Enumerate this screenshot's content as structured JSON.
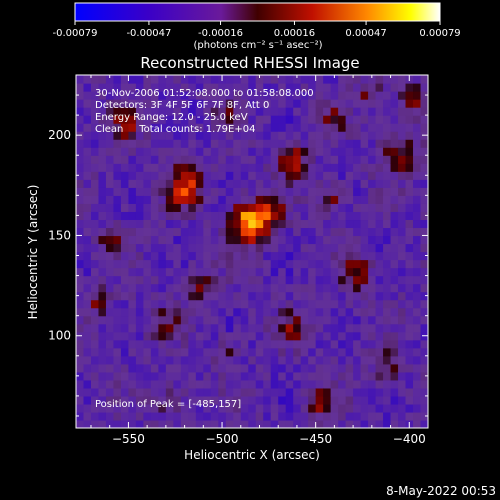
{
  "chart_data": {
    "type": "heatmap",
    "title": "Reconstructed RHESSI Image",
    "xlabel": "Heliocentric X (arcsec)",
    "ylabel": "Heliocentric Y (arcsec)",
    "xlim": [
      -578,
      -390
    ],
    "ylim": [
      54,
      230
    ],
    "x_ticks": [
      -550,
      -500,
      -450,
      -400
    ],
    "y_ticks": [
      100,
      150,
      200
    ],
    "colorbar": {
      "ticks": [
        "-0.00079",
        "-0.00047",
        "-0.00016",
        "0.00016",
        "0.00047",
        "0.00079"
      ],
      "unit_label": "(photons cm⁻² s⁻¹ asec⁻²)",
      "range": [
        -0.00079,
        0.00079
      ]
    },
    "annotations": [
      "30-Nov-2006 01:52:08.000 to 01:58:08.000",
      "Detectors: 3F 4F 5F 6F 7F 8F, Att 0",
      "Energy Range: 12.0 - 25.0 keV",
      "Clean     Total counts: 1.79E+04"
    ],
    "peak_label": "Position of Peak = [-485,157]",
    "peak": {
      "x": -485,
      "y": 157,
      "value": 0.00079
    },
    "hotspots": [
      {
        "x": -485,
        "y": 157,
        "amp": 0.00085,
        "sigma": 7
      },
      {
        "x": -472,
        "y": 162,
        "amp": 0.00035,
        "sigma": 5
      },
      {
        "x": -520,
        "y": 174,
        "amp": 0.00052,
        "sigma": 7
      },
      {
        "x": -552,
        "y": 206,
        "amp": 0.00032,
        "sigma": 6
      },
      {
        "x": -462,
        "y": 188,
        "amp": 0.0004,
        "sigma": 6
      },
      {
        "x": -442,
        "y": 168,
        "amp": 0.00036,
        "sigma": 5
      },
      {
        "x": -405,
        "y": 192,
        "amp": 0.0004,
        "sigma": 7
      },
      {
        "x": -398,
        "y": 218,
        "amp": 0.00036,
        "sigma": 6
      },
      {
        "x": -422,
        "y": 222,
        "amp": 0.00028,
        "sigma": 5
      },
      {
        "x": -512,
        "y": 124,
        "amp": 0.00034,
        "sigma": 6
      },
      {
        "x": -532,
        "y": 106,
        "amp": 0.00028,
        "sigma": 6
      },
      {
        "x": -566,
        "y": 118,
        "amp": 0.00032,
        "sigma": 5
      },
      {
        "x": -462,
        "y": 104,
        "amp": 0.0003,
        "sigma": 6
      },
      {
        "x": -428,
        "y": 132,
        "amp": 0.00036,
        "sigma": 6
      },
      {
        "x": -412,
        "y": 84,
        "amp": 0.00028,
        "sigma": 6
      },
      {
        "x": -448,
        "y": 68,
        "amp": 0.00032,
        "sigma": 6
      },
      {
        "x": -528,
        "y": 68,
        "amp": 0.00026,
        "sigma": 6
      },
      {
        "x": -560,
        "y": 148,
        "amp": 0.00026,
        "sigma": 5
      },
      {
        "x": -498,
        "y": 92,
        "amp": 0.00024,
        "sigma": 5
      },
      {
        "x": -440,
        "y": 210,
        "amp": 0.00026,
        "sigma": 5
      },
      {
        "x": -500,
        "y": 210,
        "amp": 0.00024,
        "sigma": 5
      }
    ],
    "colormaps": "blue-purple-red-yellow-white",
    "grid": false
  },
  "footer": {
    "date": "8-May-2022 00:53"
  }
}
